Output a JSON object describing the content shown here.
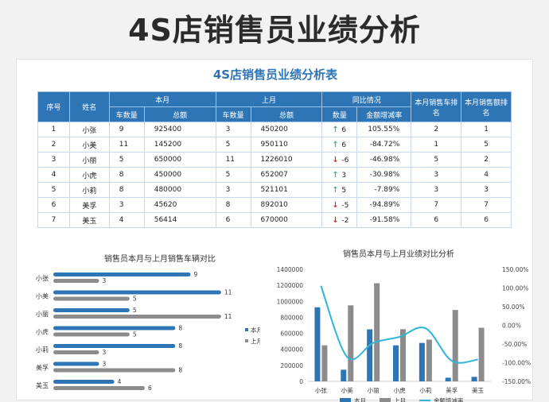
{
  "banner_title": "4S店销售员业绩分析",
  "table": {
    "title": "4S店销售员业绩分析表",
    "headers": {
      "no": "序号",
      "name": "姓名",
      "this_month": "本月",
      "last_month": "上月",
      "yoy": "同比情况",
      "car_rank": "本月销售车排名",
      "amount_rank": "本月销售额排名",
      "car_count": "车数量",
      "total": "总额",
      "qty": "数量",
      "growth": "金额增减率"
    },
    "rows": [
      {
        "no": "1",
        "name": "小张",
        "cm": "9",
        "tm": "925400",
        "cl": "3",
        "tl": "450200",
        "dir": "up",
        "qty": "6",
        "rate": "105.55%",
        "cr": "2",
        "ar": "1"
      },
      {
        "no": "2",
        "name": "小美",
        "cm": "11",
        "tm": "145200",
        "cl": "5",
        "tl": "950110",
        "dir": "up",
        "qty": "6",
        "rate": "-84.72%",
        "cr": "1",
        "ar": "5"
      },
      {
        "no": "3",
        "name": "小丽",
        "cm": "5",
        "tm": "650000",
        "cl": "11",
        "tl": "1226010",
        "dir": "down",
        "qty": "-6",
        "rate": "-46.98%",
        "cr": "5",
        "ar": "2"
      },
      {
        "no": "4",
        "name": "小虎",
        "cm": "8",
        "tm": "450000",
        "cl": "5",
        "tl": "652007",
        "dir": "up",
        "qty": "3",
        "rate": "-30.98%",
        "cr": "3",
        "ar": "4"
      },
      {
        "no": "5",
        "name": "小莉",
        "cm": "8",
        "tm": "480000",
        "cl": "3",
        "tl": "521101",
        "dir": "up",
        "qty": "5",
        "rate": "-7.89%",
        "cr": "3",
        "ar": "3"
      },
      {
        "no": "6",
        "name": "美孚",
        "cm": "3",
        "tm": "45620",
        "cl": "8",
        "tl": "892010",
        "dir": "down",
        "qty": "-5",
        "rate": "-94.89%",
        "cr": "7",
        "ar": "7"
      },
      {
        "no": "7",
        "name": "美玉",
        "cm": "4",
        "tm": "56414",
        "cl": "6",
        "tl": "670000",
        "dir": "down",
        "qty": "-2",
        "rate": "-91.58%",
        "cr": "6",
        "ar": "6"
      }
    ]
  },
  "chart_data": [
    {
      "type": "bar",
      "orientation": "horizontal",
      "title": "销售员本月与上月销售车辆对比",
      "categories": [
        "小张",
        "小美",
        "小丽",
        "小虎",
        "小莉",
        "美孚",
        "美玉"
      ],
      "series": [
        {
          "name": "本月",
          "values": [
            9,
            11,
            5,
            8,
            8,
            3,
            4
          ],
          "color": "#2e75b6"
        },
        {
          "name": "上月",
          "values": [
            3,
            5,
            11,
            5,
            3,
            8,
            6
          ],
          "color": "#8c8c8c"
        }
      ],
      "xlim": [
        0,
        12
      ],
      "legend": "right"
    },
    {
      "type": "bar",
      "title": "销售员本月与上月业绩对比分析",
      "categories": [
        "小张",
        "小美",
        "小丽",
        "小虎",
        "小莉",
        "美孚",
        "美玉"
      ],
      "series": [
        {
          "name": "本月",
          "values": [
            925400,
            145200,
            650000,
            450000,
            480000,
            45620,
            56414
          ],
          "color": "#2e75b6",
          "axis": "left"
        },
        {
          "name": "上月",
          "values": [
            450200,
            950110,
            1226010,
            652007,
            521101,
            892010,
            670000
          ],
          "color": "#8c8c8c",
          "axis": "left"
        },
        {
          "name": "金额增减率",
          "type": "line",
          "values": [
            105.55,
            -84.72,
            -46.98,
            -30.98,
            -7.89,
            -94.89,
            -91.58
          ],
          "color": "#2fb5d8",
          "axis": "right"
        }
      ],
      "ylim_left": [
        0,
        1400000
      ],
      "yticks_left": [
        "0",
        "200000",
        "400000",
        "600000",
        "800000",
        "1000000",
        "1200000",
        "1400000"
      ],
      "ylim_right": [
        -150,
        150
      ],
      "yticks_right": [
        "-150.00%",
        "-100.00%",
        "-50.00%",
        "0.00%",
        "50.00%",
        "100.00%",
        "150.00%"
      ],
      "legend": "bottom"
    }
  ]
}
